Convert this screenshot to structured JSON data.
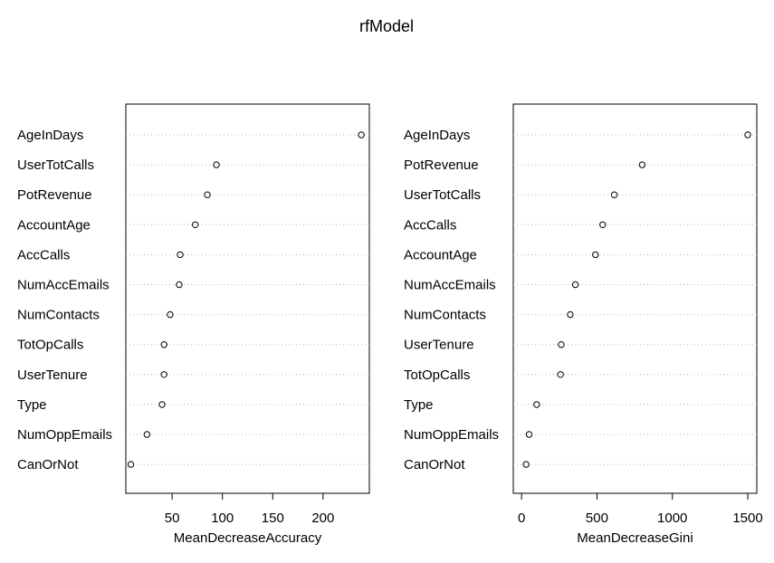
{
  "chart_data": {
    "title": "rfModel",
    "panels": [
      {
        "type": "scatter",
        "subtype": "dotchart",
        "xlabel": "MeanDecreaseAccuracy",
        "xlim": [
          4,
          246
        ],
        "xticks": [
          50,
          100,
          150,
          200
        ],
        "grid": "dotted horizontal guide per variable",
        "points": [
          {
            "label": "AgeInDays",
            "value": 238
          },
          {
            "label": "UserTotCalls",
            "value": 94
          },
          {
            "label": "PotRevenue",
            "value": 85
          },
          {
            "label": "AccountAge",
            "value": 73
          },
          {
            "label": "AccCalls",
            "value": 58
          },
          {
            "label": "NumAccEmails",
            "value": 57
          },
          {
            "label": "NumContacts",
            "value": 48
          },
          {
            "label": "TotOpCalls",
            "value": 42
          },
          {
            "label": "UserTenure",
            "value": 42
          },
          {
            "label": "Type",
            "value": 40
          },
          {
            "label": "NumOppEmails",
            "value": 25
          },
          {
            "label": "CanOrNot",
            "value": 9
          }
        ]
      },
      {
        "type": "scatter",
        "subtype": "dotchart",
        "xlabel": "MeanDecreaseGini",
        "xlim": [
          -55,
          1560
        ],
        "xticks": [
          0,
          500,
          1000,
          1500
        ],
        "grid": "dotted horizontal guide per variable",
        "points": [
          {
            "label": "AgeInDays",
            "value": 1500
          },
          {
            "label": "PotRevenue",
            "value": 800
          },
          {
            "label": "UserTotCalls",
            "value": 615
          },
          {
            "label": "AccCalls",
            "value": 538
          },
          {
            "label": "AccountAge",
            "value": 490
          },
          {
            "label": "NumAccEmails",
            "value": 357
          },
          {
            "label": "NumContacts",
            "value": 323
          },
          {
            "label": "UserTenure",
            "value": 263
          },
          {
            "label": "TotOpCalls",
            "value": 258
          },
          {
            "label": "Type",
            "value": 100
          },
          {
            "label": "NumOppEmails",
            "value": 50
          },
          {
            "label": "CanOrNot",
            "value": 30
          }
        ]
      }
    ]
  }
}
